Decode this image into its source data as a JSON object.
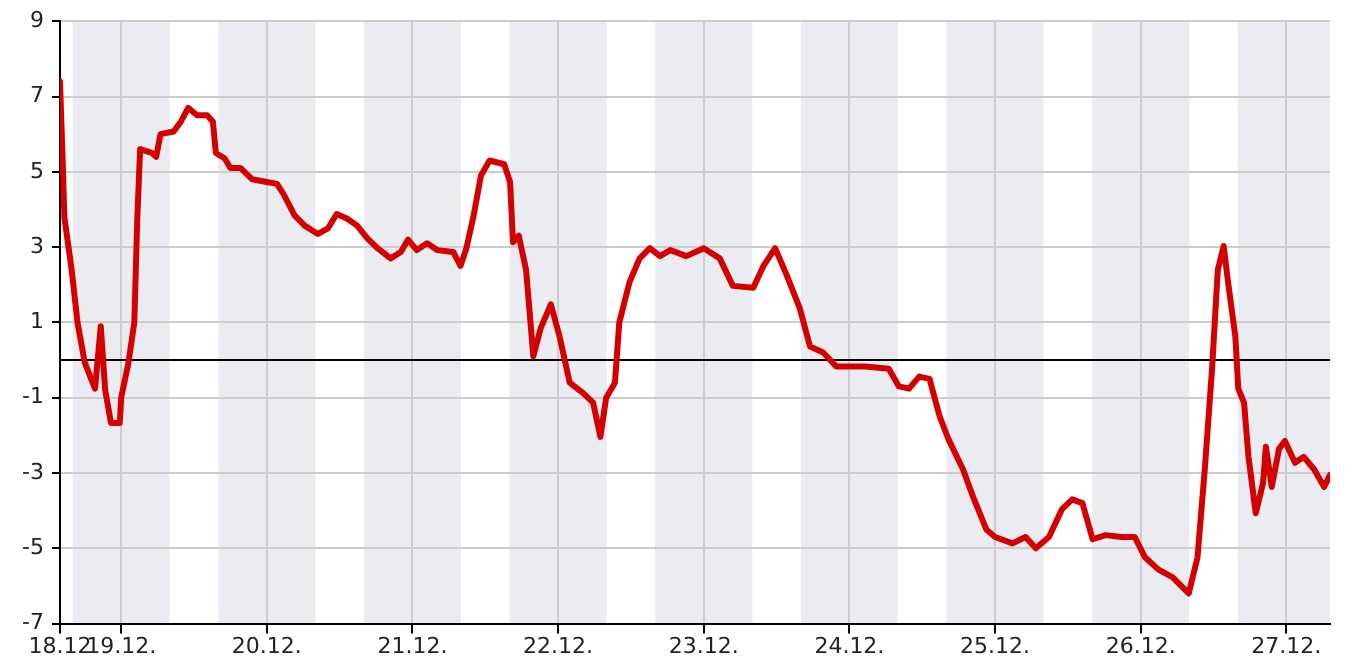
{
  "chart_data": {
    "type": "line",
    "x": [
      "--12-18T13:55",
      "--12-18T14:24",
      "--12-18T14:38",
      "--12-18T15:50",
      "--12-18T16:48",
      "--12-18T18:00",
      "--12-18T19:41",
      "--12-18T20:38",
      "--12-18T21:22",
      "--12-18T22:19",
      "--12-18T23:46",
      "--12-19T00:00",
      "--12-19T01:12",
      "--12-19T02:10",
      "--12-19T02:38",
      "--12-19T03:07",
      "--12-19T05:02",
      "--12-19T05:46",
      "--12-19T06:29",
      "--12-19T08:38",
      "--12-19T09:50",
      "--12-19T11:02",
      "--12-19T12:29",
      "--12-19T14:10",
      "--12-19T15:07",
      "--12-19T15:36",
      "--12-19T17:02",
      "--12-19T18:00",
      "--12-19T19:41",
      "--12-19T21:36",
      "--12-20T00:00",
      "--12-20T01:41",
      "--12-20T02:53",
      "--12-20T04:34",
      "--12-20T06:14",
      "--12-20T08:24",
      "--12-20T10:05",
      "--12-20T11:31",
      "--12-20T13:12",
      "--12-20T14:53",
      "--12-20T16:34",
      "--12-20T18:14",
      "--12-20T20:24",
      "--12-20T22:05",
      "--12-20T23:17",
      "--12-21T00:43",
      "--12-21T02:24",
      "--12-21T04:05",
      "--12-21T06:43",
      "--12-21T07:55",
      "--12-21T08:53",
      "--12-21T10:05",
      "--12-21T11:17",
      "--12-21T12:43",
      "--12-21T15:07",
      "--12-21T16:05",
      "--12-21T16:34",
      "--12-21T17:31",
      "--12-21T18:43",
      "--12-21T19:55",
      "--12-21T21:07",
      "--12-21T22:48",
      "--12-22T00:14",
      "--12-22T01:55",
      "--12-22T04:05",
      "--12-22T05:46",
      "--12-22T06:58",
      "--12-22T07:55",
      "--12-22T09:22",
      "--12-22T10:05",
      "--12-22T11:46",
      "--12-22T13:26",
      "--12-22T15:07",
      "--12-22T16:48",
      "--12-22T18:29",
      "--12-22T21:07",
      "--12-23T00:00",
      "--12-23T02:38",
      "--12-23T04:48",
      "--12-23T08:10",
      "--12-23T09:50",
      "--12-23T11:46",
      "--12-23T13:41",
      "--12-23T15:50",
      "--12-23T17:31",
      "--12-23T19:41",
      "--12-23T21:50",
      "--12-24T02:38",
      "--12-24T06:29",
      "--12-24T08:10",
      "--12-24T09:50",
      "--12-24T11:31",
      "--12-24T13:12",
      "--12-24T14:53",
      "--12-24T16:19",
      "--12-24T18:43",
      "--12-24T20:24",
      "--12-24T22:34",
      "--12-25T00:00",
      "--12-25T02:53",
      "--12-25T05:02",
      "--12-25T06:43",
      "--12-25T08:53",
      "--12-25T11:02",
      "--12-25T12:43",
      "--12-25T14:24",
      "--12-25T16:05",
      "--12-25T18:14",
      "--12-25T20:53",
      "--12-25T23:02",
      "--12-26T00:43",
      "--12-26T02:53",
      "--12-26T05:17",
      "--12-26T07:55",
      "--12-26T09:22",
      "--12-26T10:34",
      "--12-26T11:46",
      "--12-26T12:43",
      "--12-26T13:41",
      "--12-26T14:24",
      "--12-26T15:36",
      "--12-26T16:05",
      "--12-26T17:02",
      "--12-26T17:46",
      "--12-26T18:58",
      "--12-26T20:10",
      "--12-26T20:38",
      "--12-26T21:36",
      "--12-26T22:48",
      "--12-26T23:46",
      "--12-27T01:26",
      "--12-27T02:53",
      "--12-27T04:34",
      "--12-27T06:14",
      "--12-27T07:12"
    ],
    "series": [
      {
        "color": "#d40000",
        "values": [
          7.4,
          5.1,
          3.8,
          2.4,
          1.0,
          -0.07,
          -0.76,
          0.9,
          -0.8,
          -1.67,
          -1.67,
          -1.0,
          -0.07,
          1.0,
          3.67,
          5.6,
          5.5,
          5.4,
          6.0,
          6.07,
          6.33,
          6.7,
          6.5,
          6.5,
          6.33,
          5.5,
          5.36,
          5.1,
          5.1,
          4.8,
          4.73,
          4.68,
          4.37,
          3.84,
          3.57,
          3.35,
          3.5,
          3.88,
          3.76,
          3.57,
          3.23,
          2.97,
          2.7,
          2.87,
          3.2,
          2.92,
          3.1,
          2.92,
          2.87,
          2.5,
          2.97,
          3.84,
          4.9,
          5.3,
          5.2,
          4.73,
          3.13,
          3.3,
          2.4,
          0.1,
          0.84,
          1.48,
          0.63,
          -0.6,
          -0.87,
          -1.13,
          -2.04,
          -1.0,
          -0.6,
          1.0,
          2.07,
          2.7,
          2.97,
          2.76,
          2.92,
          2.76,
          2.97,
          2.7,
          1.97,
          1.92,
          2.5,
          2.97,
          2.25,
          1.37,
          0.36,
          0.2,
          -0.17,
          -0.17,
          -0.23,
          -0.7,
          -0.76,
          -0.44,
          -0.5,
          -1.5,
          -2.1,
          -2.9,
          -3.64,
          -4.5,
          -4.7,
          -4.87,
          -4.7,
          -5.0,
          -4.7,
          -3.96,
          -3.7,
          -3.8,
          -4.76,
          -4.65,
          -4.7,
          -4.7,
          -5.24,
          -5.56,
          -5.77,
          -6.2,
          -5.24,
          -2.9,
          -0.23,
          2.4,
          3.03,
          2.07,
          0.63,
          -0.76,
          -1.13,
          -2.57,
          -4.07,
          -3.27,
          -2.3,
          -3.37,
          -2.36,
          -2.15,
          -2.73,
          -2.57,
          -2.9,
          -3.37,
          -3.05
        ]
      }
    ],
    "xlim": [
      "--12-18T13:55",
      "--12-27T07:12"
    ],
    "xticks": [
      {
        "value": "--12-18T13:55",
        "label": "18.12"
      },
      {
        "value": "--12-19",
        "label": "19.12."
      },
      {
        "value": "--12-20",
        "label": "20.12."
      },
      {
        "value": "--12-21",
        "label": "21.12."
      },
      {
        "value": "--12-22",
        "label": "22.12."
      },
      {
        "value": "--12-23",
        "label": "23.12."
      },
      {
        "value": "--12-24",
        "label": "24.12."
      },
      {
        "value": "--12-25",
        "label": "25.12."
      },
      {
        "value": "--12-26",
        "label": "26.12."
      },
      {
        "value": "--12-27",
        "label": "27.12."
      }
    ],
    "ylim": [
      -7,
      9
    ],
    "yticks": [
      -7,
      -5,
      -3,
      -1,
      1,
      3,
      5,
      7,
      9
    ],
    "grid": true,
    "legend": false,
    "marker": "none",
    "line_style": "solid",
    "ref_lines": [
      {
        "axis": "y",
        "value": 0,
        "color": "#000000"
      }
    ],
    "bands": [
      {
        "axis": "x",
        "from": "--12-18T16:00",
        "to": "--12-19T08:00",
        "color": "#ebecf1"
      },
      {
        "axis": "x",
        "from": "--12-19T16:00",
        "to": "--12-20T08:00",
        "color": "#ebecf1"
      },
      {
        "axis": "x",
        "from": "--12-20T16:00",
        "to": "--12-21T08:00",
        "color": "#ebecf1"
      },
      {
        "axis": "x",
        "from": "--12-21T16:00",
        "to": "--12-22T08:00",
        "color": "#ebecf1"
      },
      {
        "axis": "x",
        "from": "--12-22T16:00",
        "to": "--12-23T08:00",
        "color": "#ebecf1"
      },
      {
        "axis": "x",
        "from": "--12-23T16:00",
        "to": "--12-24T08:00",
        "color": "#ebecf1"
      },
      {
        "axis": "x",
        "from": "--12-24T16:00",
        "to": "--12-25T08:00",
        "color": "#ebecf1"
      },
      {
        "axis": "x",
        "from": "--12-25T16:00",
        "to": "--12-26T08:00",
        "color": "#ebecf1"
      },
      {
        "axis": "x",
        "from": "--12-26T16:00",
        "to": "--12-27T07:12",
        "color": "#ebecf1"
      }
    ]
  }
}
